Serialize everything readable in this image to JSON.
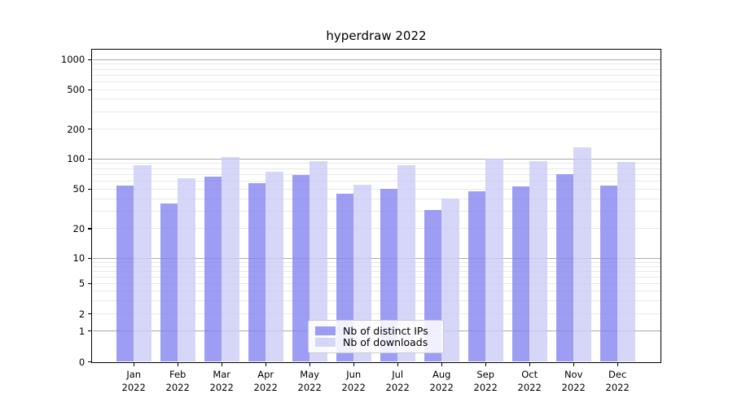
{
  "title": "hyperdraw 2022",
  "chart_data": {
    "type": "bar",
    "title": "hyperdraw 2022",
    "categories": [
      "Jan 2022",
      "Feb 2022",
      "Mar 2022",
      "Apr 2022",
      "May 2022",
      "Jun 2022",
      "Jul 2022",
      "Aug 2022",
      "Sep 2022",
      "Oct 2022",
      "Nov 2022",
      "Dec 2022"
    ],
    "series": [
      {
        "name": "Nb of distinct IPs",
        "color": "#8181f0",
        "opacity": 0.78,
        "values": [
          54,
          36,
          66,
          57,
          69,
          45,
          50,
          31,
          47,
          53,
          70,
          54
        ]
      },
      {
        "name": "Nb of downloads",
        "color": "#cacaf6",
        "opacity": 0.78,
        "values": [
          86,
          64,
          105,
          75,
          95,
          55,
          86,
          40,
          101,
          95,
          130,
          94
        ]
      }
    ],
    "y_ticks": [
      0,
      1,
      2,
      5,
      10,
      20,
      50,
      100,
      200,
      500,
      1000
    ],
    "y_scale": "symlog",
    "ylim": [
      0,
      1400
    ],
    "xlabel": "",
    "ylabel": "",
    "grid": true,
    "major_grid_values": [
      1,
      10,
      100,
      1000
    ],
    "legend_position": "lower center",
    "legend_entries": [
      "Nb of distinct IPs",
      "Nb of downloads"
    ]
  },
  "colors": {
    "background": "#ffffff",
    "spine": "#000000",
    "major_grid": "#ababab",
    "minor_grid": "#e8e8e8",
    "text": "#000000",
    "legend_border": "#cccccc"
  }
}
